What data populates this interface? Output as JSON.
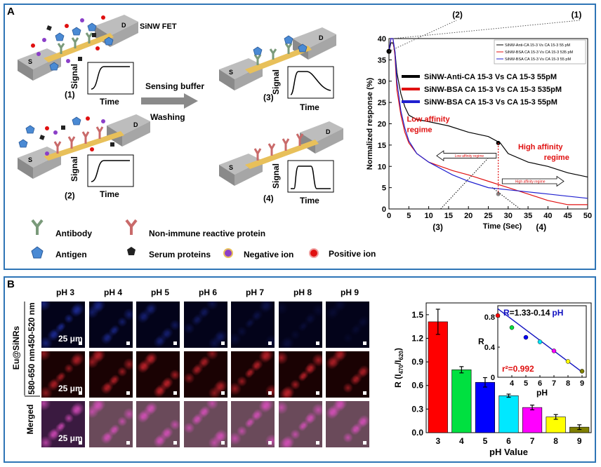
{
  "panelA": {
    "letter": "A",
    "device_label": "SiNW FET",
    "source": "S",
    "drain": "D",
    "wire_label": "SiNW FET",
    "signal_label": "Signal",
    "time_label": "Time",
    "step_labels": [
      "(1)",
      "(2)",
      "(3)",
      "(4)"
    ],
    "arrow_label_top": "Sensing buffer",
    "arrow_label_bottom": "Washing",
    "legend": {
      "antibody": "Antibody",
      "nonimmune": "Non-immune reactive protein",
      "antigen": "Antigen",
      "serum": "Serum proteins",
      "negative": "Negative ion",
      "positive": "Positive ion"
    },
    "colors": {
      "antibody": "#7a9a7a",
      "nonimmune": "#c96a6a",
      "antigen": "#4a8ad4",
      "serum": "#222222",
      "negative": "#8b3fc8",
      "positive": "#e01010",
      "wire": "#e8c05a",
      "electrode": "#9e9e9e"
    }
  },
  "panelB": {
    "letter": "B",
    "ph_columns": [
      "pH 3",
      "pH 4",
      "pH 5",
      "pH 6",
      "pH 7",
      "pH 8",
      "pH 9"
    ],
    "row_group_label": "Eu@SiNRs",
    "row_labels": [
      "450-520 nm",
      "580-650 nm",
      "Merged"
    ],
    "scale_bar": "25 μm"
  },
  "chart_data": [
    {
      "type": "line",
      "title": "",
      "xlabel": "Time (Sec)",
      "ylabel": "Normalized response (%)",
      "xlim": [
        0,
        50
      ],
      "ylim": [
        0,
        40
      ],
      "xticks": [
        "0",
        "5",
        "10",
        "15",
        "20",
        "25",
        "30",
        "35",
        "40",
        "45",
        "50"
      ],
      "yticks": [
        "0",
        "5",
        "10",
        "15",
        "20",
        "25",
        "30",
        "35",
        "40"
      ],
      "small_legend": [
        "SiNW-Anti-CA 15-3 Vs CA 15-3 55 pM",
        "SiNW-BSA CA 15-3 Vs CA 15-3 535 pM",
        "SiNW-BSA CA 15-3 Vs CA 15-3 55 pM"
      ],
      "series": [
        {
          "name": "SiNW-Anti-CA 15-3 Vs CA 15-3 55pM",
          "color": "#000000",
          "x": [
            0,
            0.5,
            1,
            1.5,
            2,
            3,
            4,
            5,
            7,
            10,
            15,
            20,
            25,
            28,
            30,
            35,
            40,
            45,
            50
          ],
          "y": [
            37,
            39,
            39,
            37,
            32,
            27,
            24,
            22,
            21,
            20.5,
            19.5,
            18,
            17,
            15.5,
            13,
            11,
            10,
            8.5,
            7.5
          ]
        },
        {
          "name": "SiNW-BSA CA 15-3 Vs CA 15-3 535pM",
          "color": "#e01010",
          "x": [
            0,
            0.5,
            1,
            1.5,
            2,
            3,
            4,
            5,
            7,
            10,
            13,
            16,
            20,
            25,
            30,
            35,
            40,
            45,
            50
          ],
          "y": [
            37,
            40,
            40,
            36,
            28,
            22,
            18,
            15.5,
            13,
            11,
            10,
            9,
            8,
            6.5,
            5,
            3.5,
            2,
            1,
            1
          ]
        },
        {
          "name": "SiNW-BSA CA 15-3 Vs CA 15-3 55pM",
          "color": "#2020d0",
          "x": [
            0,
            0.5,
            1,
            1.5,
            2,
            3,
            4,
            5,
            7,
            10,
            13,
            16,
            20,
            25,
            30,
            35,
            40,
            45,
            50
          ],
          "y": [
            37,
            40,
            40,
            37,
            30,
            23,
            19,
            16,
            13,
            11,
            9.5,
            8,
            6.5,
            5,
            4.5,
            4,
            3.5,
            3,
            2.5
          ]
        }
      ],
      "annotations": {
        "top_labels": [
          "(2)",
          "(1)"
        ],
        "bottom_labels": [
          "(3)",
          "(4)"
        ],
        "low_affinity": "Low affinity\nregime",
        "high_affinity": "High affinity\nregime",
        "low_arrow_text": "Low affinity regime",
        "high_arrow_text": "High affinity regime",
        "marker_x": 27.5
      }
    },
    {
      "type": "bar",
      "xlabel": "pH Value",
      "ylabel": "R (I470/I620)",
      "ylabel_main": "R (I",
      "ylabel_sub1": "470",
      "ylabel_mid": "/I",
      "ylabel_sub2": "620",
      "ylabel_end": ")",
      "categories": [
        "3",
        "4",
        "5",
        "6",
        "7",
        "8",
        "9"
      ],
      "values": [
        1.41,
        0.8,
        0.64,
        0.47,
        0.32,
        0.2,
        0.07
      ],
      "errors": [
        0.16,
        0.04,
        0.06,
        0.02,
        0.03,
        0.03,
        0.03
      ],
      "colors": [
        "#ff0000",
        "#00e040",
        "#0000ff",
        "#00e8ff",
        "#ff00ff",
        "#ffff00",
        "#808000"
      ],
      "ylim": [
        0,
        1.65
      ],
      "yticks": [
        "0.0",
        "0.3",
        "0.6",
        "0.9",
        "1.2",
        "1.5"
      ],
      "inset": {
        "type": "scatter",
        "xlabel": "pH",
        "ylabel": "R",
        "equation_R": "R",
        "equation_rest": "=1.33-0.14",
        "equation_pH": "pH",
        "r2": "r²=0.992",
        "x": [
          3,
          4,
          5,
          6,
          7,
          8,
          9
        ],
        "y": [
          0.82,
          0.66,
          0.53,
          0.47,
          0.35,
          0.21,
          0.08
        ],
        "xticks": [
          "4",
          "5",
          "6",
          "7",
          "8",
          "9"
        ],
        "yticks": [
          "0",
          "0.4",
          "0.8"
        ],
        "xlim": [
          3,
          9.3
        ],
        "ylim": [
          0,
          0.95
        ]
      }
    }
  ]
}
